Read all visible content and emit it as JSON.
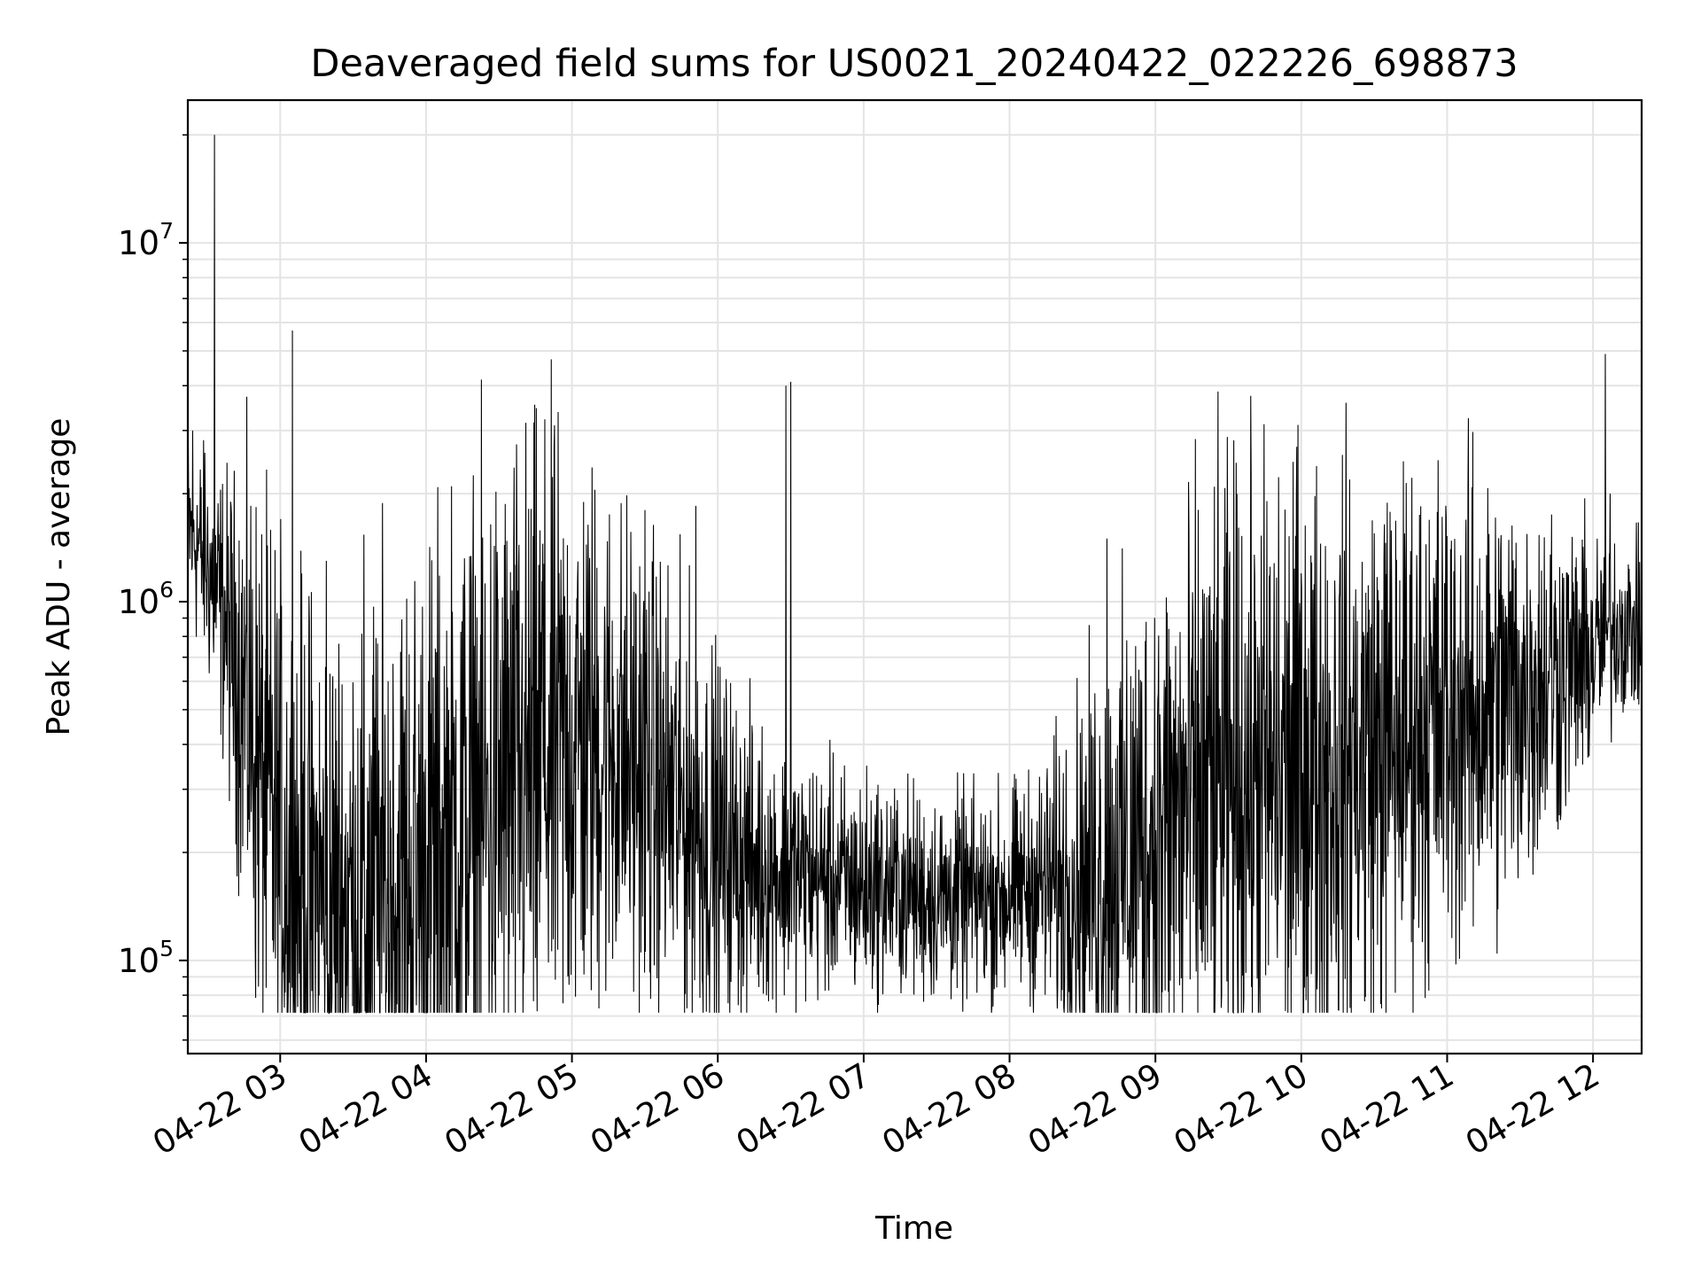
{
  "chart_data": {
    "type": "line",
    "title": "Deaveraged field sums for US0021_20240422_022226_698873",
    "xlabel": "Time",
    "ylabel": "Peak ADU - average",
    "y_scale": "log",
    "grid": true,
    "grid_minor_y": true,
    "line_color": "#000000",
    "grid_color": "#e4e4e4",
    "xlim": [
      "2024-04-22 02:22",
      "2024-04-22 12:20"
    ],
    "ylim": [
      55000,
      25000000
    ],
    "x_ticks": [
      {
        "time": "2024-04-22 03:00",
        "label": "04-22 03"
      },
      {
        "time": "2024-04-22 04:00",
        "label": "04-22 04"
      },
      {
        "time": "2024-04-22 05:00",
        "label": "04-22 05"
      },
      {
        "time": "2024-04-22 06:00",
        "label": "04-22 06"
      },
      {
        "time": "2024-04-22 07:00",
        "label": "04-22 07"
      },
      {
        "time": "2024-04-22 08:00",
        "label": "04-22 08"
      },
      {
        "time": "2024-04-22 09:00",
        "label": "04-22 09"
      },
      {
        "time": "2024-04-22 10:00",
        "label": "04-22 10"
      },
      {
        "time": "2024-04-22 11:00",
        "label": "04-22 11"
      },
      {
        "time": "2024-04-22 12:00",
        "label": "04-22 12"
      }
    ],
    "y_ticks": [
      {
        "value": 100000,
        "base": "10",
        "exp": "5"
      },
      {
        "value": 1000000,
        "base": "10",
        "exp": "6"
      },
      {
        "value": 10000000,
        "base": "10",
        "exp": "7"
      }
    ],
    "series": [
      {
        "x": [
          "2024-04-22 02:22",
          "2024-04-22 02:25",
          "2024-04-22 02:28",
          "2024-04-22 02:31",
          "2024-04-22 02:34",
          "2024-04-22 02:37",
          "2024-04-22 02:40",
          "2024-04-22 02:44",
          "2024-04-22 02:48",
          "2024-04-22 02:52",
          "2024-04-22 02:56",
          "2024-04-22 03:00",
          "2024-04-22 03:05",
          "2024-04-22 03:10",
          "2024-04-22 03:15",
          "2024-04-22 03:20",
          "2024-04-22 03:30",
          "2024-04-22 03:40",
          "2024-04-22 03:50",
          "2024-04-22 04:00",
          "2024-04-22 04:10",
          "2024-04-22 04:20",
          "2024-04-22 04:30",
          "2024-04-22 04:40",
          "2024-04-22 04:50",
          "2024-04-22 05:00",
          "2024-04-22 05:10",
          "2024-04-22 05:20",
          "2024-04-22 05:30",
          "2024-04-22 05:40",
          "2024-04-22 05:50",
          "2024-04-22 06:00",
          "2024-04-22 06:10",
          "2024-04-22 06:20",
          "2024-04-22 06:30",
          "2024-04-22 06:40",
          "2024-04-22 06:50",
          "2024-04-22 07:00",
          "2024-04-22 07:10",
          "2024-04-22 07:20",
          "2024-04-22 07:30",
          "2024-04-22 07:40",
          "2024-04-22 07:50",
          "2024-04-22 08:00",
          "2024-04-22 08:10",
          "2024-04-22 08:20",
          "2024-04-22 08:30",
          "2024-04-22 08:40",
          "2024-04-22 08:50",
          "2024-04-22 09:00",
          "2024-04-22 09:10",
          "2024-04-22 09:20",
          "2024-04-22 09:30",
          "2024-04-22 09:40",
          "2024-04-22 09:50",
          "2024-04-22 10:00",
          "2024-04-22 10:10",
          "2024-04-22 10:20",
          "2024-04-22 10:30",
          "2024-04-22 10:40",
          "2024-04-22 10:50",
          "2024-04-22 11:00",
          "2024-04-22 11:10",
          "2024-04-22 11:20",
          "2024-04-22 11:30",
          "2024-04-22 11:40",
          "2024-04-22 11:50",
          "2024-04-22 12:00",
          "2024-04-22 12:05",
          "2024-04-22 12:10",
          "2024-04-22 12:15",
          "2024-04-22 12:20"
        ],
        "y": [
          1600000,
          1500000,
          1350000,
          1200000,
          1050000,
          900000,
          750000,
          600000,
          450000,
          320000,
          250000,
          210000,
          180000,
          160000,
          150000,
          140000,
          140000,
          145000,
          155000,
          170000,
          200000,
          240000,
          280000,
          320000,
          360000,
          390000,
          400000,
          380000,
          330000,
          280000,
          240000,
          210000,
          190000,
          180000,
          175000,
          170000,
          165000,
          160000,
          160000,
          155000,
          150000,
          150000,
          150000,
          155000,
          160000,
          165000,
          170000,
          180000,
          200000,
          220000,
          250000,
          280000,
          300000,
          320000,
          330000,
          340000,
          350000,
          360000,
          380000,
          420000,
          460000,
          480000,
          500000,
          520000,
          560000,
          600000,
          660000,
          720000,
          800000,
          850000,
          850000,
          820000
        ],
        "spread": [
          0.25,
          0.25,
          0.25,
          0.28,
          0.3,
          0.35,
          0.4,
          0.5,
          0.6,
          0.65,
          0.68,
          0.7,
          0.7,
          0.7,
          0.7,
          0.72,
          0.75,
          0.78,
          0.8,
          0.82,
          0.82,
          0.82,
          0.82,
          0.8,
          0.78,
          0.72,
          0.65,
          0.6,
          0.58,
          0.55,
          0.5,
          0.45,
          0.38,
          0.32,
          0.3,
          0.28,
          0.27,
          0.27,
          0.26,
          0.25,
          0.25,
          0.25,
          0.25,
          0.25,
          0.27,
          0.35,
          0.45,
          0.55,
          0.62,
          0.68,
          0.72,
          0.75,
          0.75,
          0.75,
          0.75,
          0.75,
          0.72,
          0.7,
          0.68,
          0.65,
          0.62,
          0.6,
          0.58,
          0.55,
          0.5,
          0.42,
          0.35,
          0.28,
          0.25,
          0.22,
          0.2,
          0.2
        ]
      }
    ],
    "spikes": [
      {
        "time": "2024-04-22 02:24",
        "value": 3000000
      },
      {
        "time": "2024-04-22 02:29",
        "value": 2600000
      },
      {
        "time": "2024-04-22 02:33",
        "value": 20000000
      },
      {
        "time": "2024-04-22 03:05",
        "value": 5700000
      },
      {
        "time": "2024-04-22 03:19",
        "value": 1300000
      },
      {
        "time": "2024-04-22 04:48",
        "value": 1450000
      },
      {
        "time": "2024-04-22 05:30",
        "value": 1800000
      },
      {
        "time": "2024-04-22 05:51",
        "value": 1850000
      },
      {
        "time": "2024-04-22 06:28",
        "value": 4000000
      },
      {
        "time": "2024-04-22 06:30",
        "value": 4100000
      },
      {
        "time": "2024-04-22 08:40",
        "value": 1500000
      },
      {
        "time": "2024-04-22 11:43",
        "value": 1750000
      },
      {
        "time": "2024-04-22 12:05",
        "value": 4900000
      },
      {
        "time": "2024-04-22 12:07",
        "value": 2000000
      }
    ],
    "dips": [
      {
        "time": "2024-04-22 03:20",
        "value": 71000
      },
      {
        "time": "2024-04-22 03:56",
        "value": 75000
      },
      {
        "time": "2024-04-22 06:20",
        "value": 80000
      },
      {
        "time": "2024-04-22 07:58",
        "value": 84000
      },
      {
        "time": "2024-04-22 08:55",
        "value": 89000
      }
    ]
  }
}
